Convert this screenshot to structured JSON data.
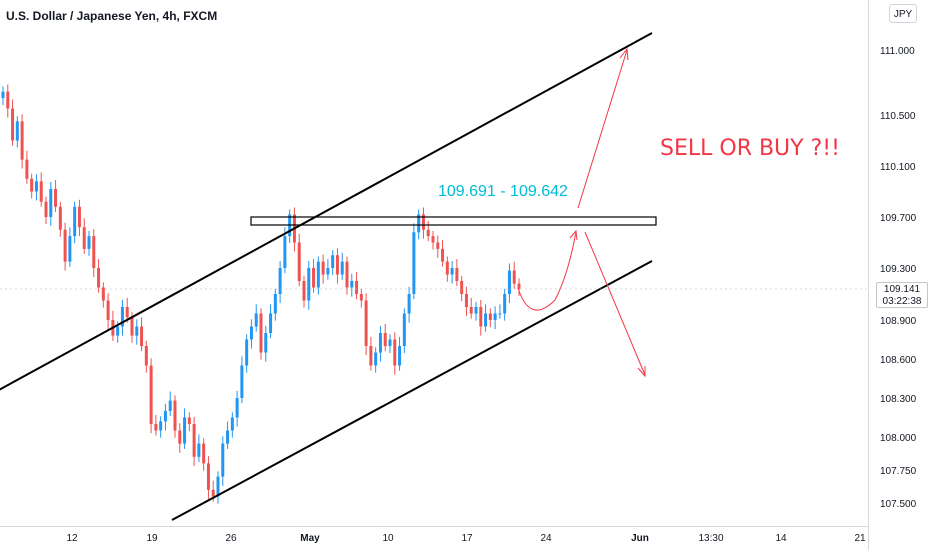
{
  "header": {
    "title": "U.S. Dollar / Japanese Yen, 4h, FXCM",
    "currency_button": "JPY"
  },
  "price_badge": {
    "price": "109.141",
    "countdown": "03:22:38"
  },
  "annotations": {
    "sell_or_buy": "SELL OR BUY ?!!",
    "zone_label": "109.691 - 109.642"
  },
  "colors": {
    "up": "#2196f3",
    "down": "#ef5350",
    "annotation": "#f23645",
    "zone_text": "#00bcd4",
    "channel": "#000000"
  },
  "chart_data": {
    "type": "line",
    "title": "U.S. Dollar / Japanese Yen, 4h, FXCM",
    "y_axis": {
      "ticks": [
        "111.000",
        "110.500",
        "110.100",
        "109.700",
        "109.300",
        "108.900",
        "108.600",
        "108.300",
        "108.000",
        "107.750",
        "107.500"
      ],
      "tick_values": [
        111.0,
        110.5,
        110.1,
        109.7,
        109.3,
        108.9,
        108.6,
        108.3,
        108.0,
        107.75,
        107.5
      ],
      "last_price": 109.141
    },
    "x_axis": {
      "ticks": [
        "12",
        "19",
        "26",
        "May",
        "10",
        "17",
        "24",
        "Jun",
        "13:30",
        "14",
        "21"
      ]
    },
    "series": [
      {
        "values": [
          110.68,
          110.55,
          110.3,
          110.45,
          110.15,
          110.0,
          109.9,
          109.98,
          109.82,
          109.7,
          109.92,
          109.78,
          109.6,
          109.35,
          109.55,
          109.78,
          109.62,
          109.45,
          109.55,
          109.3,
          109.15,
          109.05,
          108.9,
          108.78,
          108.85,
          109.0,
          108.92,
          108.78,
          108.85,
          108.7,
          108.55,
          108.1,
          108.05,
          108.12,
          108.2,
          108.28,
          108.05,
          107.95,
          108.15,
          108.1,
          107.85,
          107.95,
          107.8,
          107.6,
          107.55,
          107.7,
          107.95,
          108.05,
          108.15,
          108.3,
          108.55,
          108.75,
          108.85,
          108.95,
          108.65,
          108.8,
          108.95,
          109.1,
          109.3,
          109.55,
          109.72,
          109.5,
          109.2,
          109.05,
          109.3,
          109.15,
          109.35,
          109.25,
          109.3,
          109.4,
          109.25,
          109.35,
          109.15,
          109.2,
          109.1,
          109.05,
          108.7,
          108.55,
          108.65,
          108.8,
          108.7,
          108.75,
          108.55,
          108.7,
          108.95,
          109.1,
          109.58,
          109.72,
          109.6,
          109.55,
          109.5,
          109.45,
          109.35,
          109.25,
          109.3,
          109.2,
          109.1,
          109.0,
          108.95,
          109.0,
          108.85,
          108.95,
          108.9,
          108.95,
          108.95,
          109.1,
          109.28,
          109.18,
          109.141
        ]
      }
    ],
    "channel": {
      "upper": [
        [
          -3,
          391
        ],
        [
          652,
          33
        ]
      ],
      "lower": [
        [
          172,
          520
        ],
        [
          652,
          261
        ]
      ]
    },
    "resistance_zone": [
      109.691,
      109.642
    ]
  }
}
